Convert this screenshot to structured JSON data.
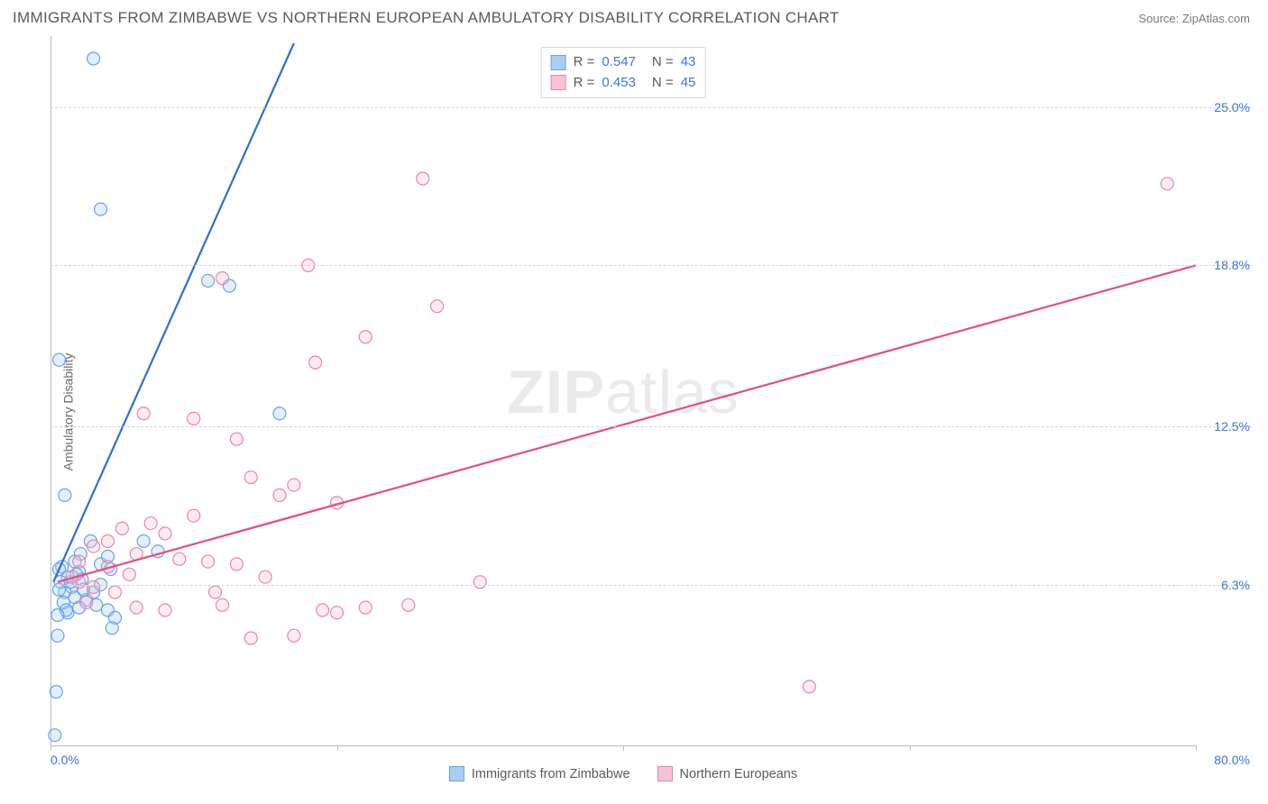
{
  "title": "IMMIGRANTS FROM ZIMBABWE VS NORTHERN EUROPEAN AMBULATORY DISABILITY CORRELATION CHART",
  "source": "Source: ZipAtlas.com",
  "ylabel": "Ambulatory Disability",
  "watermark_bold": "ZIP",
  "watermark_light": "atlas",
  "chart": {
    "type": "scatter",
    "background_color": "#ffffff",
    "grid_color": "#d5d5d5",
    "axis_color": "#b8b8b8",
    "tick_label_color": "#3b76d6",
    "xlim": [
      0,
      80
    ],
    "ylim": [
      0,
      27.5
    ],
    "x_ticks_major": [
      0,
      20,
      40,
      60,
      80
    ],
    "x_min_label": "0.0%",
    "x_max_label": "80.0%",
    "y_gridlines": [
      {
        "value": 6.3,
        "label": "6.3%"
      },
      {
        "value": 12.5,
        "label": "12.5%"
      },
      {
        "value": 18.8,
        "label": "18.8%"
      },
      {
        "value": 25.0,
        "label": "25.0%"
      }
    ],
    "marker_radius": 7,
    "marker_stroke_width": 1.2,
    "marker_fill_opacity": 0.32,
    "line_width": 2.2,
    "series": [
      {
        "name": "Immigrants from Zimbabwe",
        "color_stroke": "#6aa3e6",
        "color_fill": "#a9cdf3",
        "line_color": "#2f6fd1",
        "r": "0.547",
        "n": "43",
        "trend": {
          "x1": 0.2,
          "y1": 6.4,
          "x2": 17,
          "y2": 27.5
        },
        "points": [
          [
            0.3,
            0.4
          ],
          [
            0.5,
            4.3
          ],
          [
            0.4,
            2.1
          ],
          [
            3.0,
            26.9
          ],
          [
            3.5,
            21.0
          ],
          [
            0.6,
            15.1
          ],
          [
            11.0,
            18.2
          ],
          [
            12.5,
            18.0
          ],
          [
            16.0,
            13.0
          ],
          [
            1.0,
            9.8
          ],
          [
            0.8,
            7.0
          ],
          [
            1.2,
            6.6
          ],
          [
            1.5,
            6.2
          ],
          [
            2.0,
            6.8
          ],
          [
            2.5,
            5.7
          ],
          [
            2.2,
            6.5
          ],
          [
            3.0,
            6.0
          ],
          [
            3.2,
            5.5
          ],
          [
            3.5,
            7.1
          ],
          [
            4.0,
            5.3
          ],
          [
            4.2,
            6.9
          ],
          [
            4.5,
            5.0
          ],
          [
            1.0,
            6.0
          ],
          [
            1.2,
            5.2
          ],
          [
            1.7,
            5.8
          ],
          [
            0.7,
            6.4
          ],
          [
            0.9,
            5.6
          ],
          [
            2.1,
            7.5
          ],
          [
            2.8,
            8.0
          ],
          [
            0.6,
            6.1
          ],
          [
            1.4,
            6.4
          ],
          [
            1.8,
            6.7
          ],
          [
            0.6,
            6.9
          ],
          [
            2.3,
            6.1
          ],
          [
            3.5,
            6.3
          ],
          [
            1.1,
            5.3
          ],
          [
            2.0,
            5.4
          ],
          [
            0.5,
            5.1
          ],
          [
            1.7,
            7.2
          ],
          [
            4.0,
            7.4
          ],
          [
            6.5,
            8.0
          ],
          [
            7.5,
            7.6
          ],
          [
            4.3,
            4.6
          ]
        ]
      },
      {
        "name": "Northern Europeans",
        "color_stroke": "#e885a8",
        "color_fill": "#f6c3d5",
        "line_color": "#e84b80",
        "r": "0.453",
        "n": "45",
        "trend": {
          "x1": 0.5,
          "y1": 6.4,
          "x2": 80,
          "y2": 18.8
        },
        "points": [
          [
            26.0,
            22.2
          ],
          [
            78.0,
            22.0
          ],
          [
            53.0,
            2.3
          ],
          [
            18.0,
            18.8
          ],
          [
            22.0,
            16.0
          ],
          [
            18.5,
            15.0
          ],
          [
            27.0,
            17.2
          ],
          [
            12.0,
            18.3
          ],
          [
            10.0,
            12.8
          ],
          [
            6.5,
            13.0
          ],
          [
            13.0,
            12.0
          ],
          [
            14.0,
            10.5
          ],
          [
            17.0,
            10.2
          ],
          [
            10.0,
            9.0
          ],
          [
            7.0,
            8.7
          ],
          [
            5.0,
            8.5
          ],
          [
            8.0,
            8.3
          ],
          [
            4.0,
            8.0
          ],
          [
            6.0,
            7.5
          ],
          [
            9.0,
            7.3
          ],
          [
            11.0,
            7.2
          ],
          [
            13.0,
            7.1
          ],
          [
            15.0,
            6.6
          ],
          [
            16.0,
            9.8
          ],
          [
            20.0,
            9.5
          ],
          [
            2.0,
            6.4
          ],
          [
            3.0,
            6.2
          ],
          [
            4.5,
            6.0
          ],
          [
            2.5,
            5.6
          ],
          [
            30.0,
            6.4
          ],
          [
            19.0,
            5.3
          ],
          [
            20.0,
            5.2
          ],
          [
            22.0,
            5.4
          ],
          [
            17.0,
            4.3
          ],
          [
            14.0,
            4.2
          ],
          [
            12.0,
            5.5
          ],
          [
            8.0,
            5.3
          ],
          [
            6.0,
            5.4
          ],
          [
            3.0,
            7.8
          ],
          [
            4.0,
            7.0
          ],
          [
            2.0,
            7.2
          ],
          [
            1.5,
            6.6
          ],
          [
            5.5,
            6.7
          ],
          [
            11.5,
            6.0
          ],
          [
            25.0,
            5.5
          ]
        ]
      }
    ]
  },
  "legend_bottom": [
    "Immigrants from Zimbabwe",
    "Northern Europeans"
  ]
}
